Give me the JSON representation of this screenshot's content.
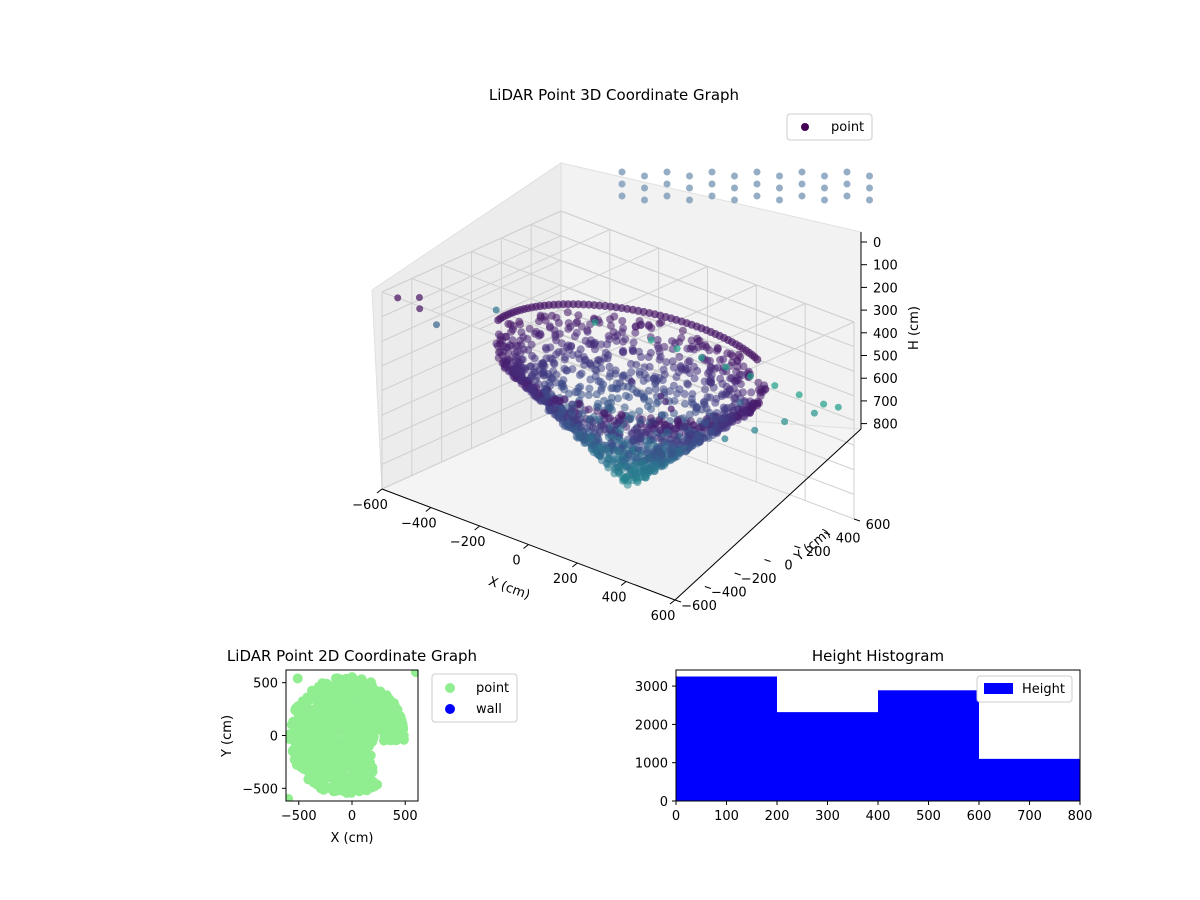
{
  "chart_data": [
    {
      "type": "scatter3d",
      "title": "LiDAR Point 3D Coordinate Graph",
      "xlabel": "X (cm)",
      "ylabel": "Y (cm)",
      "zlabel": "H (cm)",
      "xlim": [
        -600,
        600
      ],
      "ylim": [
        -600,
        600
      ],
      "zlim": [
        0,
        800
      ],
      "z_inverted": true,
      "xticks": [
        "−600",
        "−400",
        "−200",
        "0",
        "200",
        "400",
        "600"
      ],
      "yticks": [
        "−600",
        "−400",
        "−200",
        "0",
        "200",
        "400",
        "600"
      ],
      "zticks": [
        "0",
        "100",
        "200",
        "300",
        "400",
        "500",
        "600",
        "700",
        "800"
      ],
      "legend": {
        "entries": [
          "point"
        ],
        "position": "top-right"
      },
      "colormap": "viridis",
      "series": [
        {
          "name": "point",
          "points": [
            [
              -560,
              -560,
              20
            ],
            [
              -520,
              -480,
              25
            ],
            [
              -470,
              -560,
              30
            ],
            [
              -560,
              -300,
              200
            ],
            [
              -560,
              100,
              250
            ],
            [
              -400,
              500,
              350
            ],
            [
              -200,
              550,
              360
            ],
            [
              -100,
              560,
              360
            ],
            [
              0,
              560,
              360
            ],
            [
              100,
              560,
              360
            ],
            [
              200,
              560,
              360
            ],
            [
              300,
              560,
              360
            ],
            [
              400,
              560,
              360
            ],
            [
              500,
              560,
              360
            ],
            [
              560,
              560,
              350
            ],
            [
              560,
              400,
              330
            ],
            [
              560,
              200,
              310
            ],
            [
              560,
              0,
              290
            ],
            [
              560,
              -200,
              270
            ],
            [
              300,
              -400,
              80
            ],
            [
              450,
              -450,
              70
            ],
            [
              500,
              -500,
              60
            ],
            [
              560,
              -560,
              50
            ],
            [
              500,
              0,
              200
            ]
          ],
          "bulk_cloud": {
            "description": "dense bowl-shaped point cloud",
            "x_range": [
              -500,
              500
            ],
            "y_range": [
              -400,
              560
            ],
            "h_range": [
              200,
              750
            ]
          }
        }
      ]
    },
    {
      "type": "scatter",
      "title": "LiDAR Point 2D Coordinate Graph",
      "xlabel": "X (cm)",
      "ylabel": "Y (cm)",
      "xlim": [
        -620,
        620
      ],
      "ylim": [
        -620,
        620
      ],
      "xticks": [
        "−500",
        "0",
        "500"
      ],
      "yticks": [
        "−500",
        "0",
        "500"
      ],
      "legend": {
        "entries": [
          "point",
          "wall"
        ],
        "position": "outside-right"
      },
      "series": [
        {
          "name": "point",
          "color": "#90ee90",
          "region": {
            "description": "dense circular blob of points",
            "center": [
              -50,
              0
            ],
            "radius_x": 540,
            "radius_y": 560,
            "cut_quadrant": "lower-right"
          },
          "extra_points": [
            [
              -510,
              540
            ],
            [
              600,
              600
            ],
            [
              -600,
              -600
            ]
          ]
        },
        {
          "name": "wall",
          "color": "#0000ff",
          "points": []
        }
      ]
    },
    {
      "type": "histogram",
      "title": "Height Histogram",
      "xlabel": "",
      "ylabel": "",
      "xlim": [
        0,
        800
      ],
      "ylim": [
        0,
        3420
      ],
      "xticks": [
        "0",
        "100",
        "200",
        "300",
        "400",
        "500",
        "600",
        "700",
        "800"
      ],
      "yticks": [
        "0",
        "1000",
        "2000",
        "3000"
      ],
      "legend": {
        "entries": [
          "Height"
        ],
        "position": "top-right"
      },
      "series": [
        {
          "name": "Height",
          "color": "#0000ff",
          "bins": [
            {
              "start": 0,
              "end": 200,
              "count": 3250
            },
            {
              "start": 200,
              "end": 400,
              "count": 2320
            },
            {
              "start": 400,
              "end": 600,
              "count": 2890
            },
            {
              "start": 600,
              "end": 800,
              "count": 1100
            }
          ]
        }
      ]
    }
  ]
}
